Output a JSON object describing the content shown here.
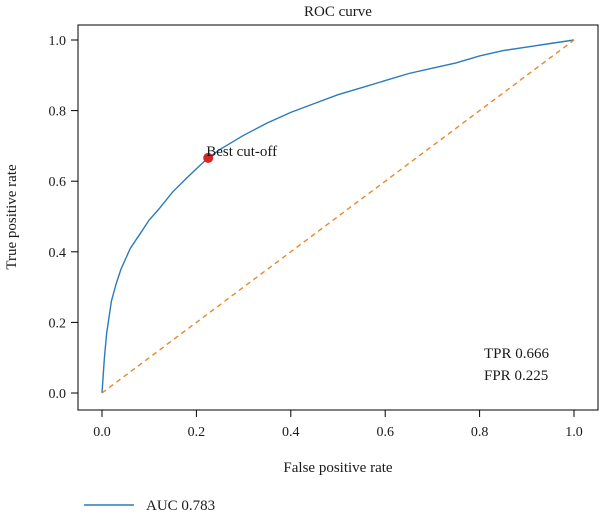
{
  "chart_data": {
    "type": "line",
    "title": "ROC curve",
    "xlabel": "False positive rate",
    "ylabel": "True positive rate",
    "xlim": [
      0,
      1
    ],
    "ylim": [
      0,
      1
    ],
    "xticks": [
      "0.0",
      "0.2",
      "0.4",
      "0.6",
      "0.8",
      "1.0"
    ],
    "yticks": [
      "0.0",
      "0.2",
      "0.4",
      "0.6",
      "0.8",
      "1.0"
    ],
    "grid": false,
    "legend_position": "bottom-left",
    "series": [
      {
        "name": "AUC 0.783",
        "color": "#2b7bb9",
        "style": "solid",
        "x": [
          0,
          0.005,
          0.01,
          0.02,
          0.03,
          0.04,
          0.05,
          0.06,
          0.08,
          0.1,
          0.12,
          0.15,
          0.18,
          0.2,
          0.225,
          0.25,
          0.3,
          0.35,
          0.4,
          0.45,
          0.5,
          0.55,
          0.6,
          0.65,
          0.7,
          0.75,
          0.8,
          0.85,
          0.9,
          0.95,
          1.0
        ],
        "y": [
          0,
          0.1,
          0.17,
          0.26,
          0.31,
          0.35,
          0.38,
          0.41,
          0.45,
          0.49,
          0.52,
          0.57,
          0.61,
          0.635,
          0.666,
          0.69,
          0.73,
          0.765,
          0.795,
          0.82,
          0.845,
          0.865,
          0.885,
          0.905,
          0.92,
          0.935,
          0.955,
          0.97,
          0.98,
          0.99,
          1.0
        ]
      },
      {
        "name": "",
        "color": "#e8882a",
        "style": "dashed",
        "x": [
          0,
          1
        ],
        "y": [
          0,
          1
        ]
      }
    ],
    "point": {
      "label": "Best cut-off",
      "x": 0.225,
      "y": 0.666,
      "color": "#d62728"
    },
    "annotations": [
      "TPR 0.666",
      "FPR 0.225"
    ]
  }
}
